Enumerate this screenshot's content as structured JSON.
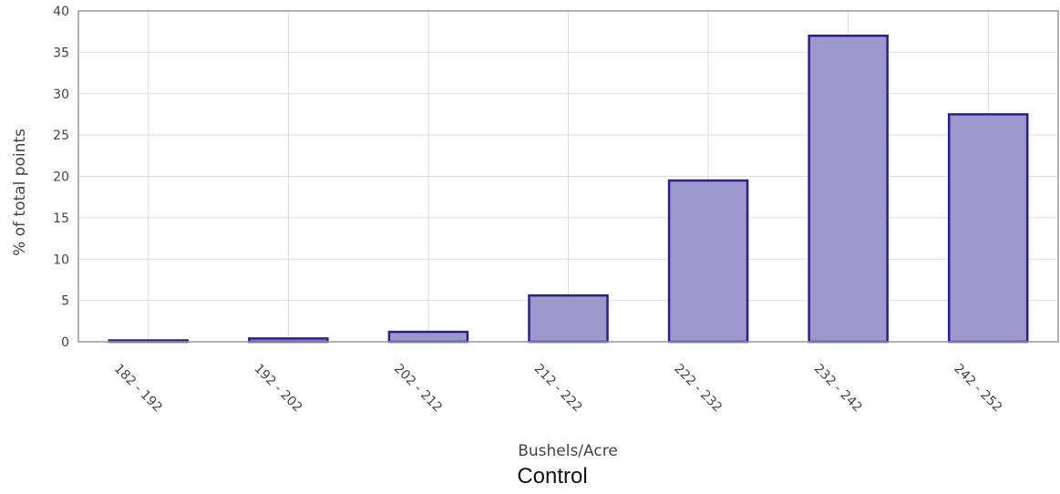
{
  "chart_data": {
    "type": "bar",
    "categories": [
      "182 - 192",
      "192 - 202",
      "202 - 212",
      "212 - 222",
      "222 - 232",
      "232 - 242",
      "242 - 252"
    ],
    "values": [
      0.1,
      0.4,
      1.2,
      5.6,
      19.5,
      37.0,
      27.5
    ],
    "ylabel": "% of total points",
    "xlabel": "Bushels/Acre",
    "ylim": [
      0,
      40
    ],
    "yticks": [
      0,
      5,
      10,
      15,
      20,
      25,
      30,
      35,
      40
    ],
    "grid": true,
    "colors": {
      "bar_fill": "#9d97cc",
      "bar_stroke": "#2a1f8f"
    }
  },
  "caption": "Control"
}
